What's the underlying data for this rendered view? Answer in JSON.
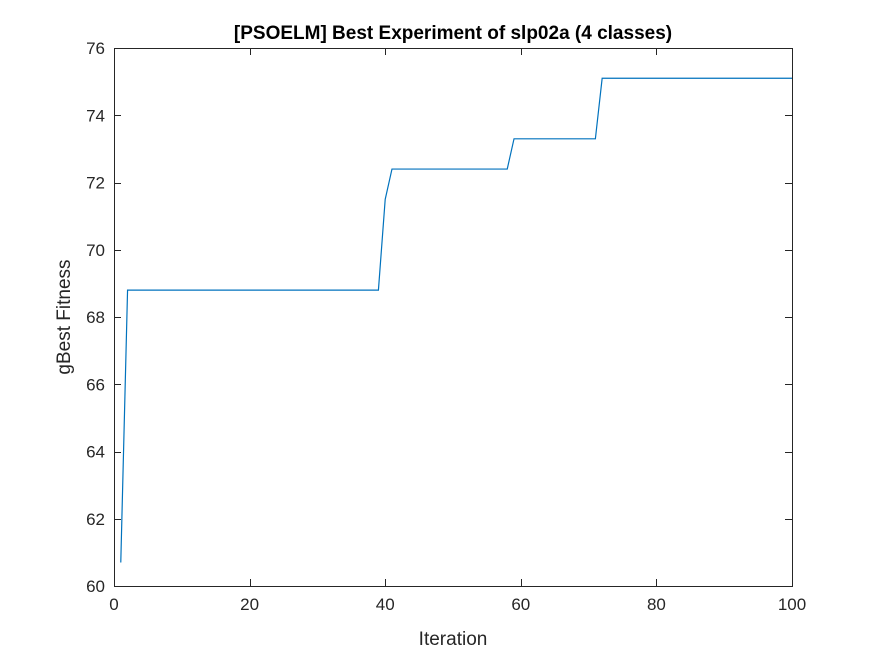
{
  "chart_data": {
    "type": "line",
    "title": "[PSOELM] Best Experiment of slp02a (4 classes)",
    "xlabel": "Iteration",
    "ylabel": "gBest Fitness",
    "xlim": [
      0,
      100
    ],
    "ylim": [
      60,
      76
    ],
    "xticks": [
      0,
      20,
      40,
      60,
      80,
      100
    ],
    "yticks": [
      60,
      62,
      64,
      66,
      68,
      70,
      72,
      74,
      76
    ],
    "xtick_labels": [
      "0",
      "20",
      "40",
      "60",
      "80",
      "100"
    ],
    "ytick_labels": [
      "60",
      "62",
      "64",
      "66",
      "68",
      "70",
      "72",
      "74",
      "76"
    ],
    "grid": false,
    "box": true,
    "series": [
      {
        "color": "#0072BD",
        "x": [
          1,
          2,
          39,
          40,
          41,
          58,
          59,
          71,
          72,
          100
        ],
        "y": [
          60.7,
          68.8,
          68.8,
          71.5,
          72.4,
          72.4,
          73.3,
          73.3,
          75.1,
          75.1
        ]
      }
    ]
  }
}
